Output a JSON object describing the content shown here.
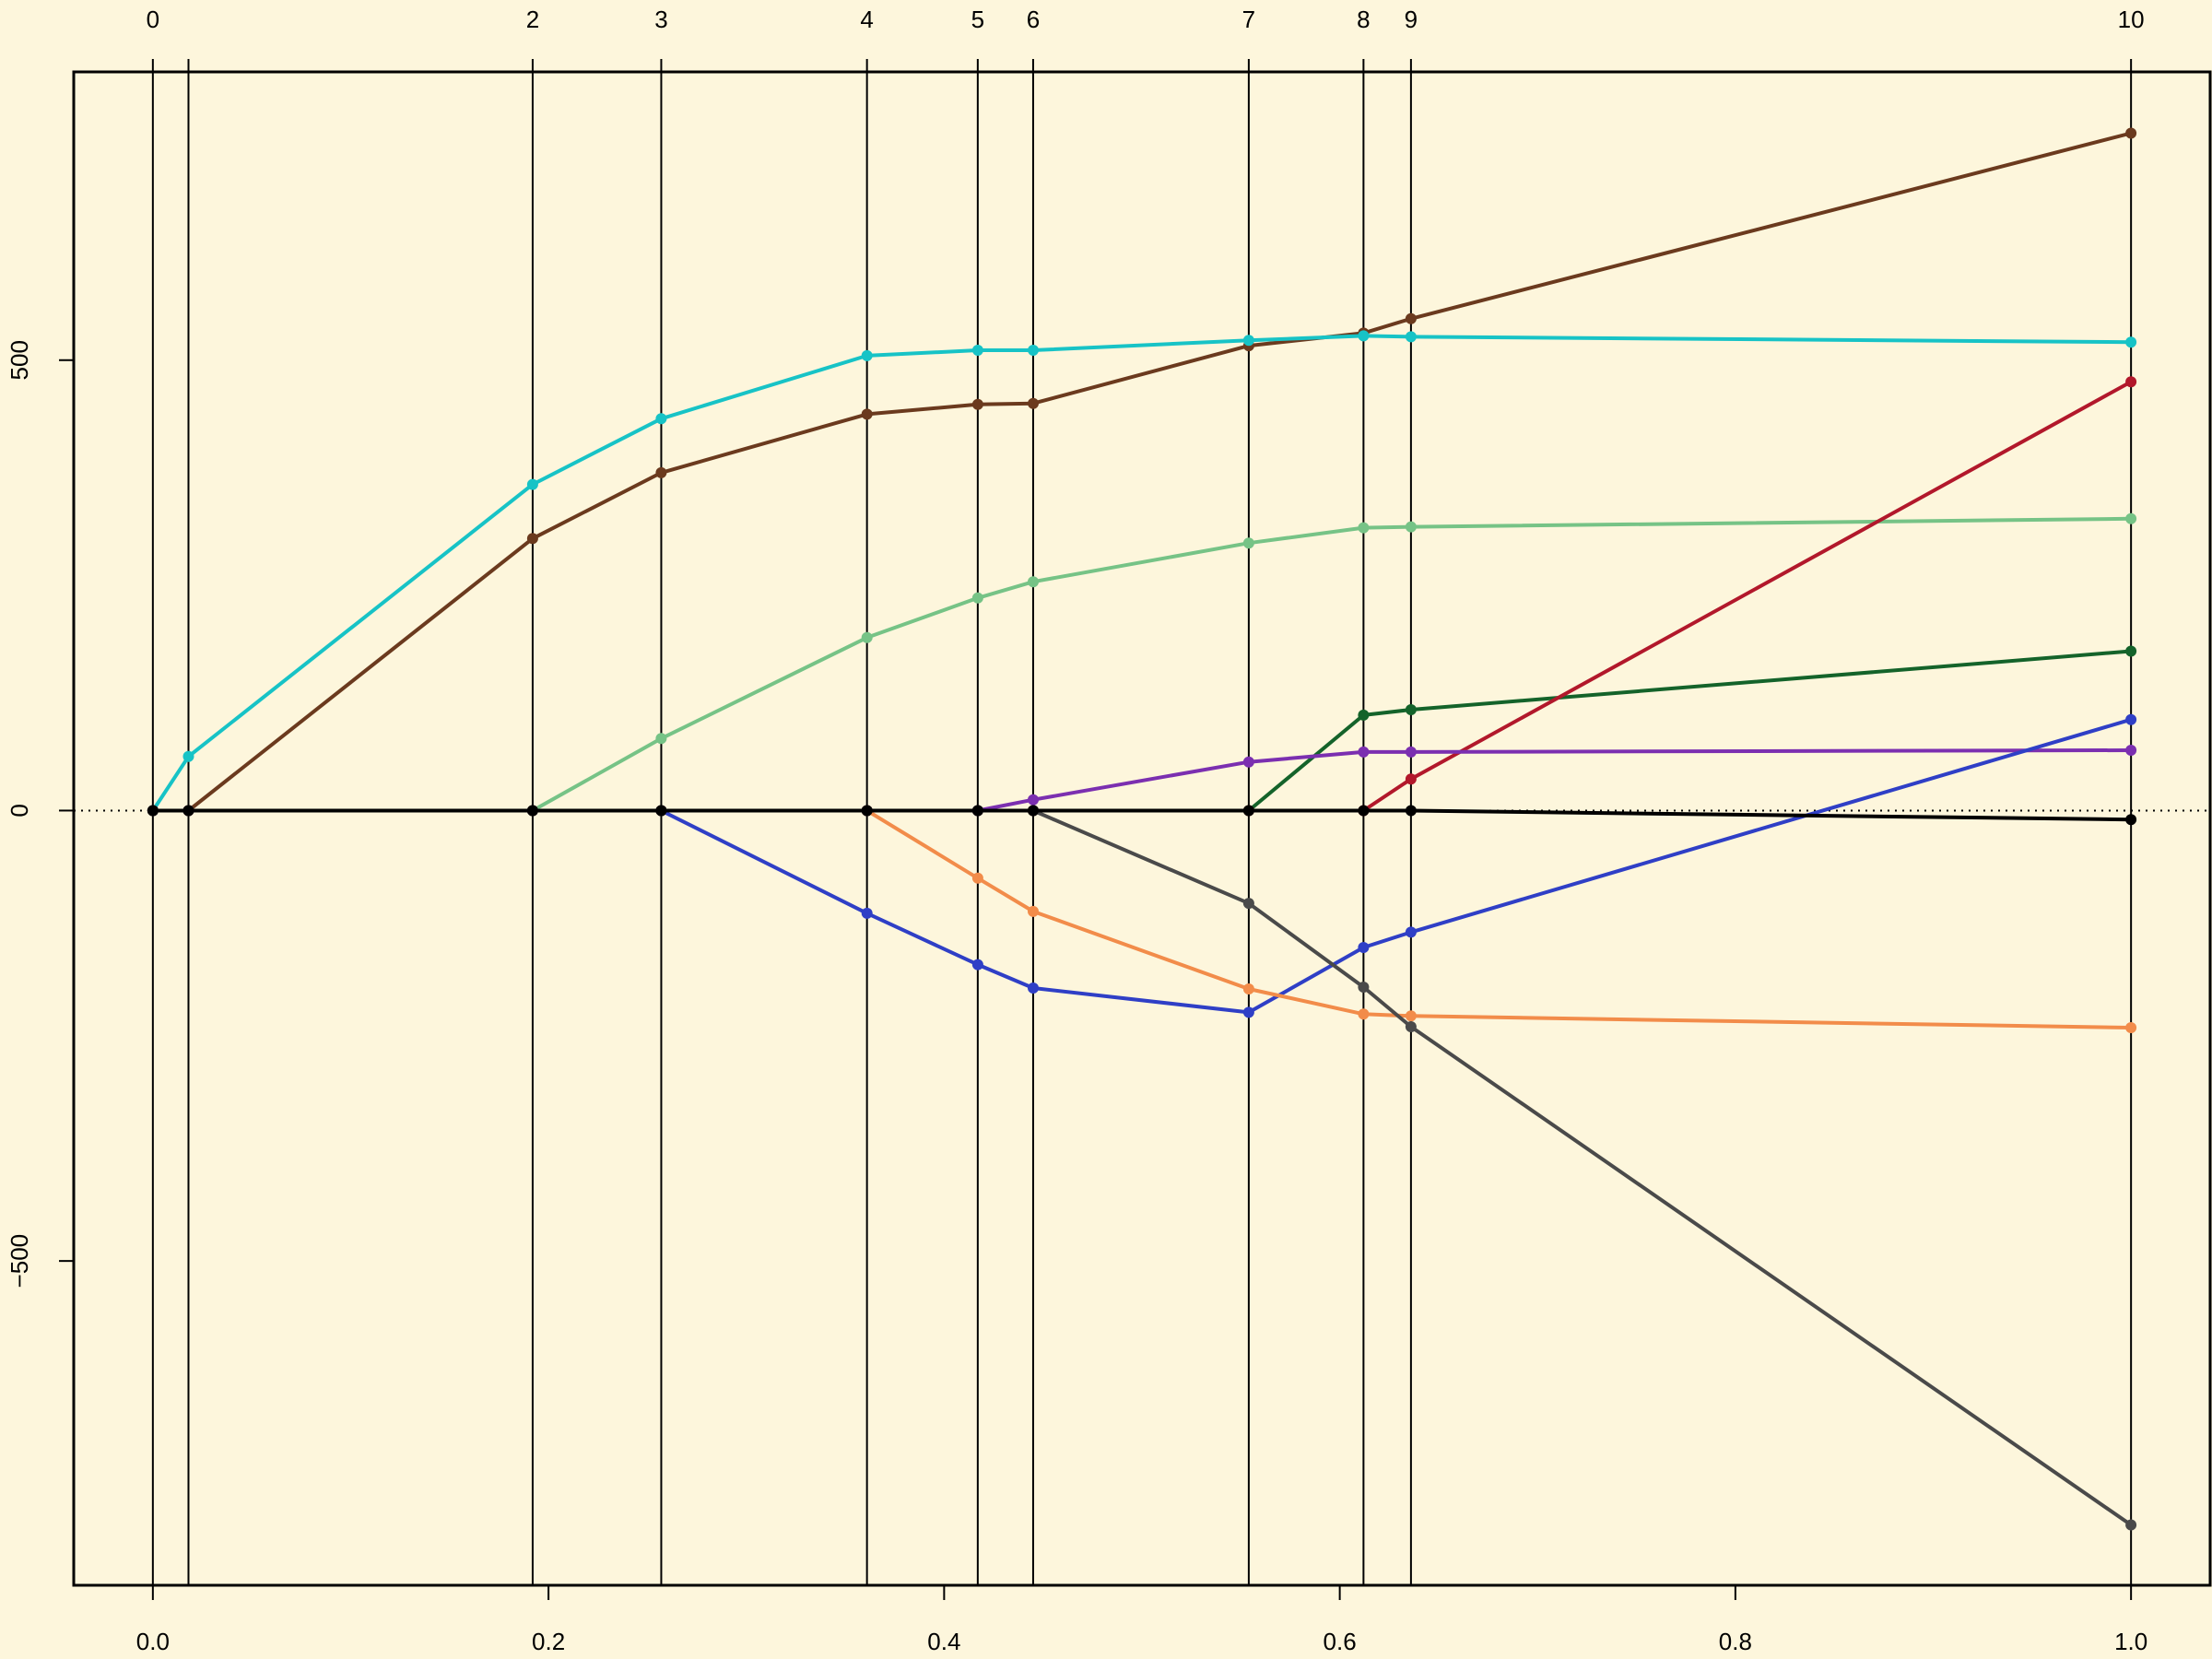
{
  "chart_data": {
    "type": "line",
    "title": "",
    "xlabel": "",
    "ylabel": "",
    "xlim": [
      -0.04,
      1.04
    ],
    "ylim": [
      -860,
      820
    ],
    "x_ticks": [
      {
        "value": 0.0,
        "label": "0.0"
      },
      {
        "value": 0.2,
        "label": "0.2"
      },
      {
        "value": 0.4,
        "label": "0.4"
      },
      {
        "value": 0.6,
        "label": "0.6"
      },
      {
        "value": 0.8,
        "label": "0.8"
      },
      {
        "value": 1.0,
        "label": "1.0"
      }
    ],
    "y_ticks": [
      {
        "value": -500,
        "label": "−500"
      },
      {
        "value": 0,
        "label": "0"
      },
      {
        "value": 500,
        "label": "500"
      }
    ],
    "zero_line": "dotted",
    "step_x": [
      0.0,
      0.018,
      0.192,
      0.257,
      0.361,
      0.417,
      0.445,
      0.554,
      0.612,
      0.636,
      1.0
    ],
    "step_labels": [
      "0",
      "",
      "2",
      "3",
      "4",
      "5",
      "6",
      "7",
      "8",
      "9",
      "10"
    ],
    "series": [
      {
        "color": "#6b3a1e",
        "values": [
          0,
          0,
          302,
          375,
          440,
          451,
          452,
          516,
          530,
          546,
          752
        ]
      },
      {
        "color": "#17c3c6",
        "values": [
          0,
          60,
          362,
          435,
          505,
          511,
          511,
          522,
          527,
          526,
          520
        ]
      },
      {
        "color": "#76c386",
        "values": [
          0,
          0,
          0,
          80,
          192,
          236,
          254,
          297,
          314,
          315,
          324
        ]
      },
      {
        "color": "#14632a",
        "values": [
          0,
          0,
          0,
          0,
          0,
          0,
          0,
          0,
          106,
          112,
          177
        ]
      },
      {
        "color": "#b2182b",
        "values": [
          0,
          0,
          0,
          0,
          0,
          0,
          0,
          0,
          0,
          35,
          476
        ]
      },
      {
        "color": "#7b2fb0",
        "values": [
          0,
          0,
          0,
          0,
          0,
          0,
          12,
          54,
          65,
          65,
          67
        ]
      },
      {
        "color": "#2f3fc6",
        "values": [
          0,
          0,
          0,
          0,
          -114,
          -171,
          -197,
          -224,
          -152,
          -135,
          101
        ]
      },
      {
        "color": "#f28c4a",
        "values": [
          0,
          0,
          0,
          0,
          0,
          -75,
          -112,
          -198,
          -226,
          -228,
          -241
        ]
      },
      {
        "color": "#4a4a4a",
        "values": [
          0,
          0,
          0,
          0,
          0,
          0,
          0,
          -103,
          -196,
          -240,
          -793
        ]
      },
      {
        "color": "#000000",
        "values": [
          0,
          0,
          0,
          0,
          0,
          0,
          0,
          0,
          0,
          0,
          -10
        ]
      }
    ]
  },
  "colors": {
    "background": "#fdf6dc",
    "axis": "#000000"
  }
}
